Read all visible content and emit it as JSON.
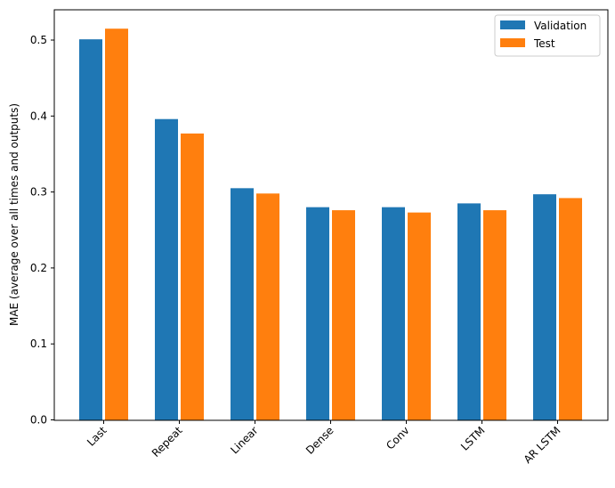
{
  "chart_data": {
    "type": "bar",
    "title": "",
    "xlabel": "",
    "ylabel": "MAE (average over all times and outputs)",
    "categories": [
      "Last",
      "Repeat",
      "Linear",
      "Dense",
      "Conv",
      "LSTM",
      "AR LSTM"
    ],
    "series": [
      {
        "name": "Validation",
        "color": "#1f77b4",
        "values": [
          0.501,
          0.396,
          0.305,
          0.28,
          0.28,
          0.285,
          0.297
        ]
      },
      {
        "name": "Test",
        "color": "#ff7f0e",
        "values": [
          0.515,
          0.377,
          0.298,
          0.276,
          0.273,
          0.276,
          0.292
        ]
      }
    ],
    "ylim": [
      0,
      0.54
    ],
    "yticks": [
      "0.0",
      "0.1",
      "0.2",
      "0.3",
      "0.4",
      "0.5"
    ],
    "xtick_rotation": 45,
    "grid": false,
    "legend": "top-right"
  }
}
